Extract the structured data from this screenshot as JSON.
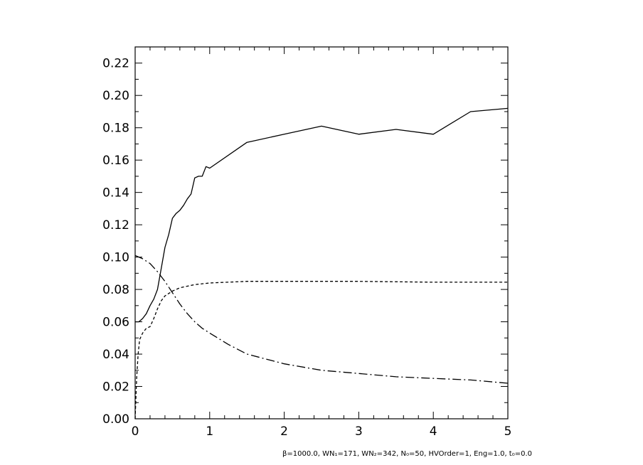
{
  "chart_data": {
    "type": "line",
    "title": "",
    "xlabel": "",
    "ylabel": "",
    "xlim": [
      0,
      5
    ],
    "ylim": [
      0,
      0.23
    ],
    "xticks": [
      0,
      1,
      2,
      3,
      4,
      5
    ],
    "xtick_labels": [
      "0",
      "1",
      "2",
      "3",
      "4",
      "5"
    ],
    "yticks": [
      0.0,
      0.02,
      0.04,
      0.06,
      0.08,
      0.1,
      0.12,
      0.14,
      0.16,
      0.18,
      0.2,
      0.22
    ],
    "ytick_labels": [
      "0.00",
      "0.02",
      "0.04",
      "0.06",
      "0.08",
      "0.10",
      "0.12",
      "0.14",
      "0.16",
      "0.18",
      "0.20",
      "0.22"
    ],
    "grid": false,
    "legend": "none",
    "series": [
      {
        "style": "solid",
        "points": [
          [
            0,
            0.06
          ],
          [
            0.05,
            0.06
          ],
          [
            0.1,
            0.062
          ],
          [
            0.15,
            0.065
          ],
          [
            0.2,
            0.07
          ],
          [
            0.25,
            0.074
          ],
          [
            0.3,
            0.08
          ],
          [
            0.35,
            0.093
          ],
          [
            0.4,
            0.106
          ],
          [
            0.45,
            0.114
          ],
          [
            0.5,
            0.124
          ],
          [
            0.55,
            0.127
          ],
          [
            0.6,
            0.129
          ],
          [
            0.65,
            0.132
          ],
          [
            0.7,
            0.136
          ],
          [
            0.75,
            0.139
          ],
          [
            0.8,
            0.149
          ],
          [
            0.85,
            0.15
          ],
          [
            0.9,
            0.15
          ],
          [
            0.95,
            0.156
          ],
          [
            1.0,
            0.155
          ],
          [
            1.5,
            0.171
          ],
          [
            2.0,
            0.176
          ],
          [
            2.5,
            0.181
          ],
          [
            3.0,
            0.176
          ],
          [
            3.5,
            0.179
          ],
          [
            4.0,
            0.176
          ],
          [
            4.5,
            0.19
          ],
          [
            5.0,
            0.192
          ]
        ]
      },
      {
        "style": "dashed",
        "points": [
          [
            0,
            0.0
          ],
          [
            0.02,
            0.025
          ],
          [
            0.04,
            0.04
          ],
          [
            0.06,
            0.049
          ],
          [
            0.1,
            0.053
          ],
          [
            0.15,
            0.056
          ],
          [
            0.2,
            0.057
          ],
          [
            0.25,
            0.062
          ],
          [
            0.3,
            0.068
          ],
          [
            0.35,
            0.073
          ],
          [
            0.4,
            0.076
          ],
          [
            0.5,
            0.079
          ],
          [
            0.6,
            0.081
          ],
          [
            0.7,
            0.082
          ],
          [
            0.8,
            0.083
          ],
          [
            0.9,
            0.0835
          ],
          [
            1.0,
            0.084
          ],
          [
            1.5,
            0.085
          ],
          [
            2.0,
            0.085
          ],
          [
            2.5,
            0.085
          ],
          [
            3.0,
            0.085
          ],
          [
            4.0,
            0.0845
          ],
          [
            5.0,
            0.0845
          ]
        ]
      },
      {
        "style": "dashdot",
        "points": [
          [
            0,
            0.101
          ],
          [
            0.1,
            0.099
          ],
          [
            0.2,
            0.096
          ],
          [
            0.3,
            0.091
          ],
          [
            0.4,
            0.085
          ],
          [
            0.5,
            0.078
          ],
          [
            0.6,
            0.071
          ],
          [
            0.7,
            0.065
          ],
          [
            0.8,
            0.06
          ],
          [
            0.9,
            0.056
          ],
          [
            1.0,
            0.053
          ],
          [
            1.25,
            0.046
          ],
          [
            1.5,
            0.04
          ],
          [
            2.0,
            0.034
          ],
          [
            2.5,
            0.03
          ],
          [
            3.0,
            0.028
          ],
          [
            3.5,
            0.026
          ],
          [
            4.0,
            0.025
          ],
          [
            4.5,
            0.024
          ],
          [
            5.0,
            0.022
          ]
        ]
      }
    ]
  },
  "footnote": "β=1000.0, WN₁=171, WN₂=342, N₀=50, HVOrder=1, Eng=1.0, t₀=0.0"
}
